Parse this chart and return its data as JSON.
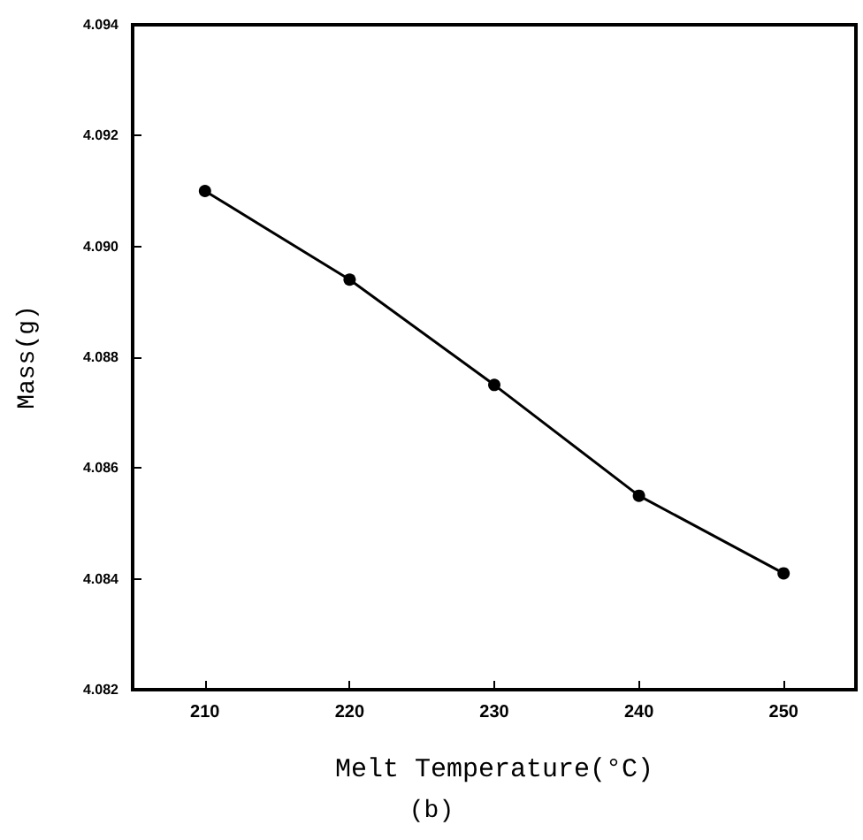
{
  "chart_data": {
    "type": "line",
    "xlabel": "Melt Temperature(°C)",
    "ylabel": "Mass(g)",
    "annotations": [
      "(b)"
    ],
    "x": [
      210,
      220,
      230,
      240,
      250
    ],
    "series": [
      {
        "color": "#000000",
        "values": [
          4.091,
          4.0894,
          4.0875,
          4.0855,
          4.0841
        ]
      }
    ],
    "xlim": [
      205,
      255
    ],
    "xticks": [
      210,
      220,
      230,
      240,
      250
    ],
    "ylim": [
      4.082,
      4.094
    ],
    "yticks": [
      {
        "value": 4.082,
        "label": "4.082"
      },
      {
        "value": 4.084,
        "label": "4.084"
      },
      {
        "value": 4.086,
        "label": "4.086"
      },
      {
        "value": 4.088,
        "label": "4.088"
      },
      {
        "value": 4.09,
        "label": "4.090"
      },
      {
        "value": 4.092,
        "label": "4.092"
      },
      {
        "value": 4.094,
        "label": "4.094"
      }
    ],
    "marker": "circle",
    "line_style": "solid"
  }
}
